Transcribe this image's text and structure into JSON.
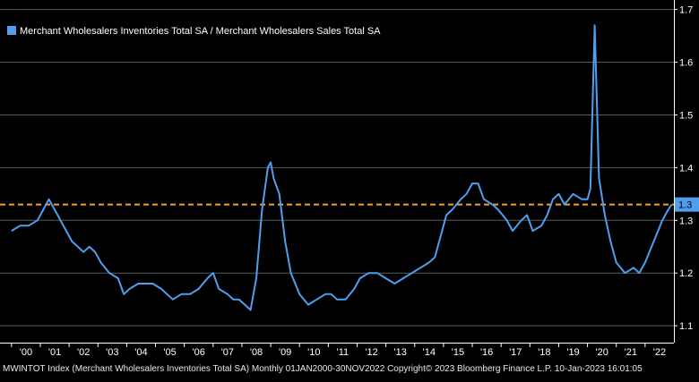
{
  "chart_data": {
    "type": "line",
    "legend_position": "top-left",
    "grid": true,
    "series": [
      {
        "name": "Merchant Wholesalers Inventories Total SA / Merchant Wholesalers Sales Total SA",
        "color": "#4f9fee",
        "values": [
          [
            2000.0,
            1.28
          ],
          [
            2000.3,
            1.29
          ],
          [
            2000.6,
            1.29
          ],
          [
            2000.9,
            1.3
          ],
          [
            2001.1,
            1.32
          ],
          [
            2001.3,
            1.34
          ],
          [
            2001.5,
            1.32
          ],
          [
            2001.7,
            1.3
          ],
          [
            2001.9,
            1.28
          ],
          [
            2002.1,
            1.26
          ],
          [
            2002.3,
            1.25
          ],
          [
            2002.5,
            1.24
          ],
          [
            2002.7,
            1.25
          ],
          [
            2002.9,
            1.24
          ],
          [
            2003.1,
            1.22
          ],
          [
            2003.4,
            1.2
          ],
          [
            2003.7,
            1.19
          ],
          [
            2003.9,
            1.16
          ],
          [
            2004.1,
            1.17
          ],
          [
            2004.4,
            1.18
          ],
          [
            2004.7,
            1.18
          ],
          [
            2004.9,
            1.18
          ],
          [
            2005.2,
            1.17
          ],
          [
            2005.4,
            1.16
          ],
          [
            2005.6,
            1.15
          ],
          [
            2005.9,
            1.16
          ],
          [
            2006.2,
            1.16
          ],
          [
            2006.5,
            1.17
          ],
          [
            2006.8,
            1.19
          ],
          [
            2007.0,
            1.2
          ],
          [
            2007.2,
            1.17
          ],
          [
            2007.5,
            1.16
          ],
          [
            2007.7,
            1.15
          ],
          [
            2007.9,
            1.15
          ],
          [
            2008.1,
            1.14
          ],
          [
            2008.3,
            1.13
          ],
          [
            2008.5,
            1.19
          ],
          [
            2008.7,
            1.32
          ],
          [
            2008.9,
            1.4
          ],
          [
            2009.0,
            1.41
          ],
          [
            2009.1,
            1.38
          ],
          [
            2009.3,
            1.35
          ],
          [
            2009.5,
            1.26
          ],
          [
            2009.7,
            1.2
          ],
          [
            2010.0,
            1.16
          ],
          [
            2010.3,
            1.14
          ],
          [
            2010.6,
            1.15
          ],
          [
            2010.9,
            1.16
          ],
          [
            2011.1,
            1.16
          ],
          [
            2011.3,
            1.15
          ],
          [
            2011.6,
            1.15
          ],
          [
            2011.9,
            1.17
          ],
          [
            2012.1,
            1.19
          ],
          [
            2012.4,
            1.2
          ],
          [
            2012.7,
            1.2
          ],
          [
            2013.0,
            1.19
          ],
          [
            2013.3,
            1.18
          ],
          [
            2013.6,
            1.19
          ],
          [
            2013.9,
            1.2
          ],
          [
            2014.2,
            1.21
          ],
          [
            2014.5,
            1.22
          ],
          [
            2014.7,
            1.23
          ],
          [
            2014.9,
            1.27
          ],
          [
            2015.1,
            1.31
          ],
          [
            2015.3,
            1.32
          ],
          [
            2015.6,
            1.34
          ],
          [
            2015.8,
            1.35
          ],
          [
            2016.0,
            1.37
          ],
          [
            2016.2,
            1.37
          ],
          [
            2016.4,
            1.34
          ],
          [
            2016.7,
            1.33
          ],
          [
            2016.9,
            1.32
          ],
          [
            2017.2,
            1.3
          ],
          [
            2017.4,
            1.28
          ],
          [
            2017.7,
            1.3
          ],
          [
            2017.9,
            1.31
          ],
          [
            2018.1,
            1.28
          ],
          [
            2018.4,
            1.29
          ],
          [
            2018.6,
            1.31
          ],
          [
            2018.8,
            1.34
          ],
          [
            2019.0,
            1.35
          ],
          [
            2019.2,
            1.33
          ],
          [
            2019.5,
            1.35
          ],
          [
            2019.8,
            1.34
          ],
          [
            2020.0,
            1.34
          ],
          [
            2020.1,
            1.36
          ],
          [
            2020.25,
            1.67
          ],
          [
            2020.4,
            1.38
          ],
          [
            2020.6,
            1.31
          ],
          [
            2020.8,
            1.26
          ],
          [
            2021.0,
            1.22
          ],
          [
            2021.3,
            1.2
          ],
          [
            2021.6,
            1.21
          ],
          [
            2021.8,
            1.2
          ],
          [
            2022.0,
            1.22
          ],
          [
            2022.3,
            1.26
          ],
          [
            2022.6,
            1.3
          ],
          [
            2022.8,
            1.32
          ],
          [
            2022.92,
            1.33
          ]
        ]
      }
    ],
    "reference_line": {
      "value": 1.33,
      "color": "#f0a030",
      "style": "dashed"
    },
    "last_value_label": "1.3",
    "x_ticks": [
      "'00",
      "'01",
      "'02",
      "'03",
      "'04",
      "'05",
      "'06",
      "'07",
      "'08",
      "'09",
      "'10",
      "'11",
      "'12",
      "'13",
      "'14",
      "'15",
      "'16",
      "'17",
      "'18",
      "'19",
      "'20",
      "'21",
      "'22"
    ],
    "x_tick_years": [
      2000,
      2001,
      2002,
      2003,
      2004,
      2005,
      2006,
      2007,
      2008,
      2009,
      2010,
      2011,
      2012,
      2013,
      2014,
      2015,
      2016,
      2017,
      2018,
      2019,
      2020,
      2021,
      2022
    ],
    "xlim": [
      1999.6,
      2023.0
    ],
    "y_ticks": [
      "1.1",
      "1.2",
      "1.3",
      "1.4",
      "1.5",
      "1.6",
      "1.7"
    ],
    "y_tick_values": [
      1.1,
      1.2,
      1.3,
      1.4,
      1.5,
      1.6,
      1.7
    ],
    "ylim": [
      1.068,
      1.718
    ],
    "colors": {
      "background": "#000000",
      "grid": "#5a5a5a",
      "axis": "#ffffff",
      "last_value_bg": "#4f9fee"
    }
  },
  "footer": {
    "text": "MWINTOT Index (Merchant Wholesalers Inventories Total SA)  Monthly 01JAN2000-30NOV2022 Copyright© 2023 Bloomberg Finance L.P. 10-Jan-2023 16:01:05"
  }
}
